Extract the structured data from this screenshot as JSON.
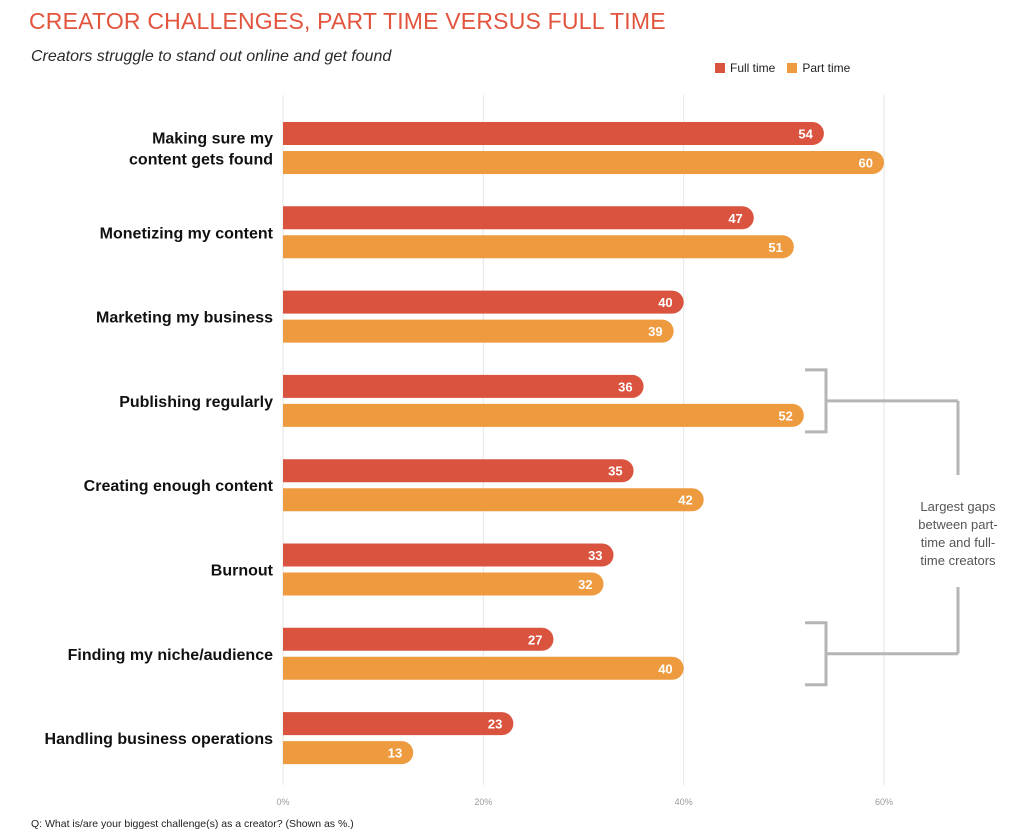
{
  "header": {
    "title": "CREATOR CHALLENGES, PART TIME VERSUS FULL TIME",
    "subtitle": "Creators struggle to stand out online and get found"
  },
  "footnote": "Q: What is/are your biggest challenge(s) as a creator?  (Shown as %.)",
  "colors": {
    "full_time": "#d9533f",
    "part_time": "#ee9a3f",
    "grid": "#e6e6e6",
    "bracket": "#b5b5b5"
  },
  "chart_data": {
    "type": "bar",
    "orientation": "horizontal",
    "categories": [
      [
        "Making sure my",
        "content gets found"
      ],
      [
        "Monetizing my content"
      ],
      [
        "Marketing my business"
      ],
      [
        "Publishing regularly"
      ],
      [
        "Creating enough content"
      ],
      [
        "Burnout"
      ],
      [
        "Finding my niche/audience"
      ],
      [
        "Handling business operations"
      ]
    ],
    "series": [
      {
        "name": "Full time",
        "values": [
          54,
          47,
          40,
          36,
          35,
          33,
          27,
          23
        ]
      },
      {
        "name": "Part time",
        "values": [
          60,
          51,
          39,
          52,
          42,
          32,
          40,
          13
        ]
      }
    ],
    "xlim": [
      0,
      60
    ],
    "xticks": [
      "0%",
      "20%",
      "40%",
      "60%"
    ],
    "grid": true,
    "legend": "top-right",
    "annotation": {
      "lines": [
        "Largest gaps",
        "between part-",
        "time and full-",
        "time creators"
      ],
      "highlighted_categories": [
        "Publishing regularly",
        "Finding my niche/audience"
      ]
    }
  }
}
